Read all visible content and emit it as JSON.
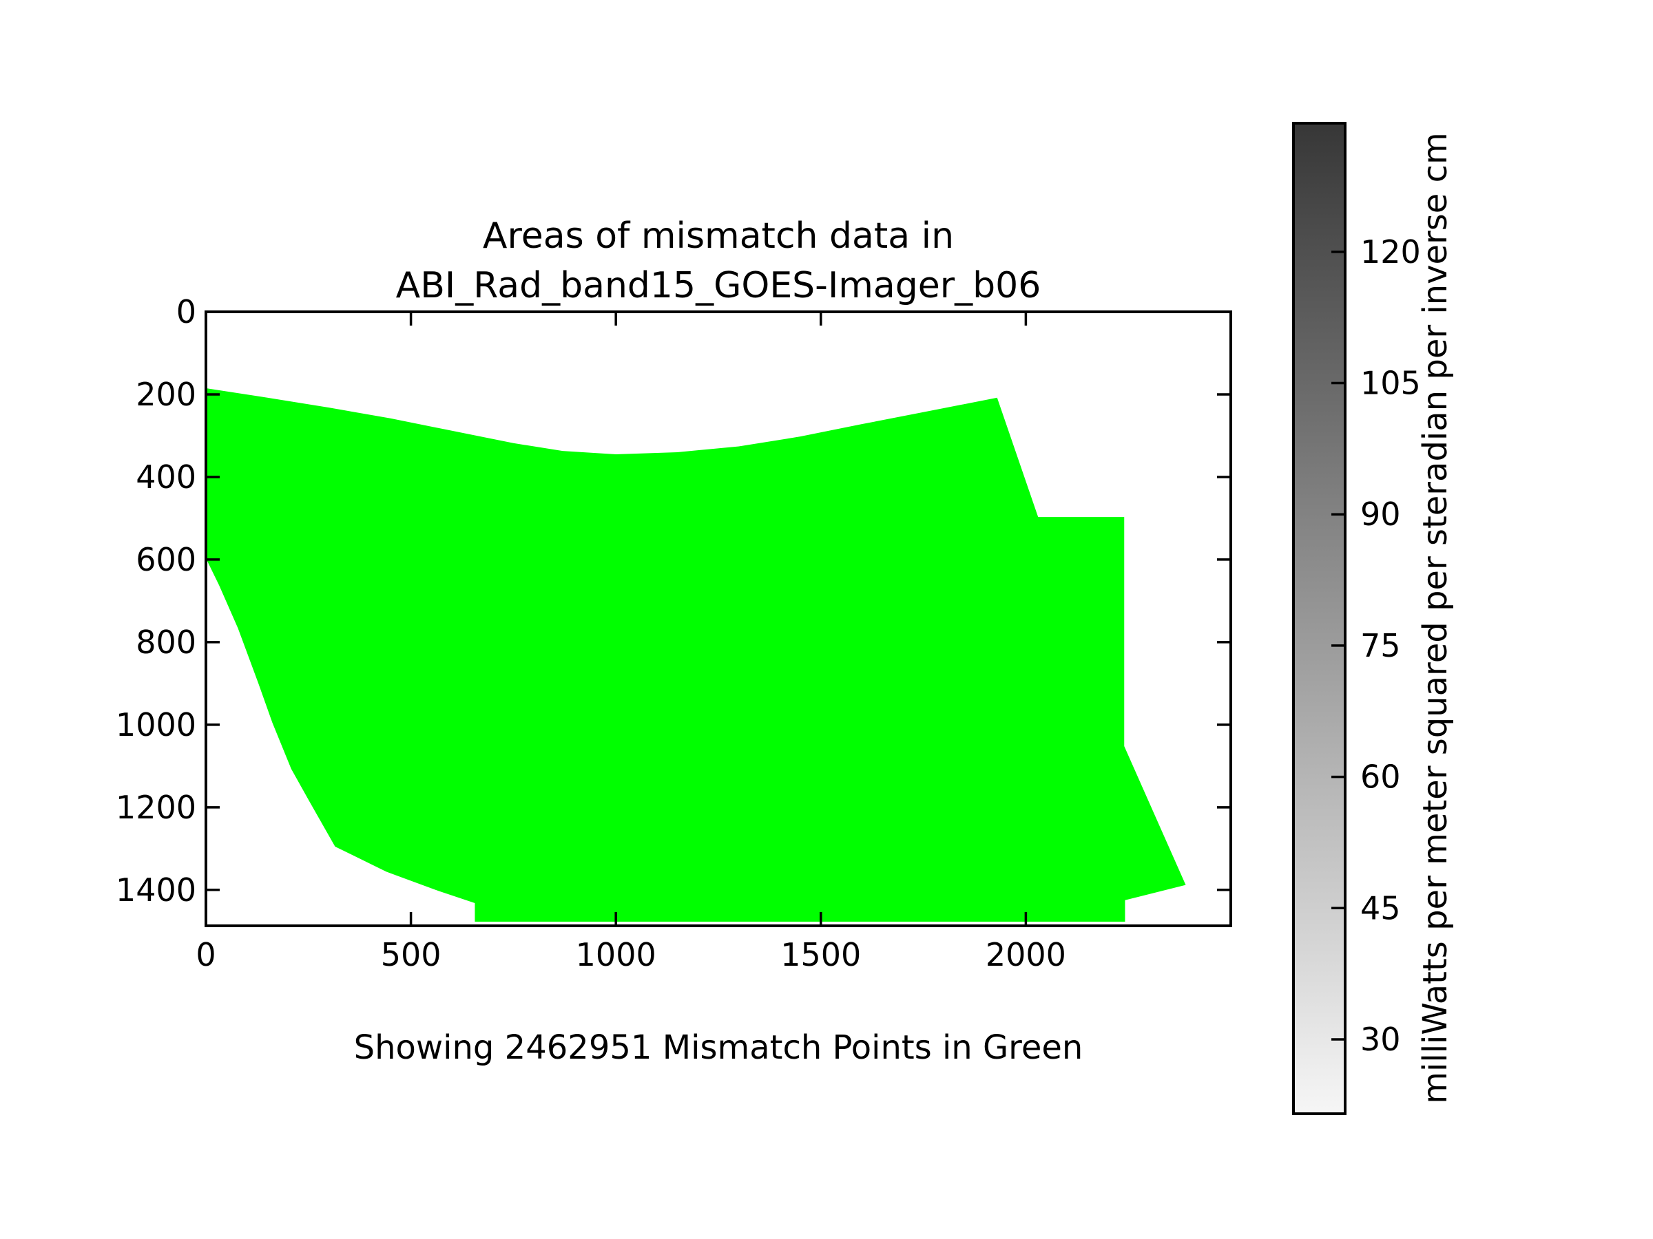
{
  "figure": {
    "title_line1": "Areas of mismatch data in",
    "title_line2": "ABI_Rad_band15_GOES-Imager_b06",
    "caption": "Showing 2462951 Mismatch Points in Green"
  },
  "chart_data": {
    "type": "area",
    "title": "Areas of mismatch data in ABI_Rad_band15_GOES-Imager_b06",
    "caption": "Showing 2462951 Mismatch Points in Green",
    "mismatch_point_count": 2462951,
    "region_color": "#00ff00",
    "background_color": "#ffffff",
    "grid": false,
    "x_ticks": [
      0,
      500,
      1000,
      1500,
      2000
    ],
    "y_ticks": [
      0,
      200,
      400,
      600,
      800,
      1000,
      1200,
      1400
    ],
    "xlim": [
      0,
      2500
    ],
    "ylim": [
      0,
      1487
    ],
    "y_axis_inverted": true,
    "region_polygon_xy": [
      [
        0,
        185
      ],
      [
        150,
        208
      ],
      [
        300,
        232
      ],
      [
        450,
        258
      ],
      [
        600,
        288
      ],
      [
        750,
        318
      ],
      [
        870,
        337
      ],
      [
        1000,
        345
      ],
      [
        1150,
        340
      ],
      [
        1300,
        326
      ],
      [
        1450,
        302
      ],
      [
        1600,
        272
      ],
      [
        1750,
        243
      ],
      [
        1930,
        208
      ],
      [
        2030,
        497
      ],
      [
        2240,
        497
      ],
      [
        2240,
        1052
      ],
      [
        2390,
        1388
      ],
      [
        2242,
        1425
      ],
      [
        2242,
        1477
      ],
      [
        656,
        1477
      ],
      [
        656,
        1432
      ],
      [
        560,
        1400
      ],
      [
        440,
        1356
      ],
      [
        315,
        1295
      ],
      [
        252,
        1185
      ],
      [
        208,
        1107
      ],
      [
        162,
        995
      ],
      [
        128,
        900
      ],
      [
        78,
        766
      ],
      [
        32,
        662
      ],
      [
        0,
        597
      ]
    ],
    "colorbar": {
      "label": "milliWatts per meter squared per steradian per inverse cm",
      "ticks": [
        30,
        45,
        60,
        75,
        90,
        105,
        120
      ],
      "value_range": [
        21.5,
        134.7
      ],
      "color_bottom": "#f6f6f6",
      "color_top": "#373737",
      "orientation": "vertical",
      "ticks_side": "right"
    }
  }
}
